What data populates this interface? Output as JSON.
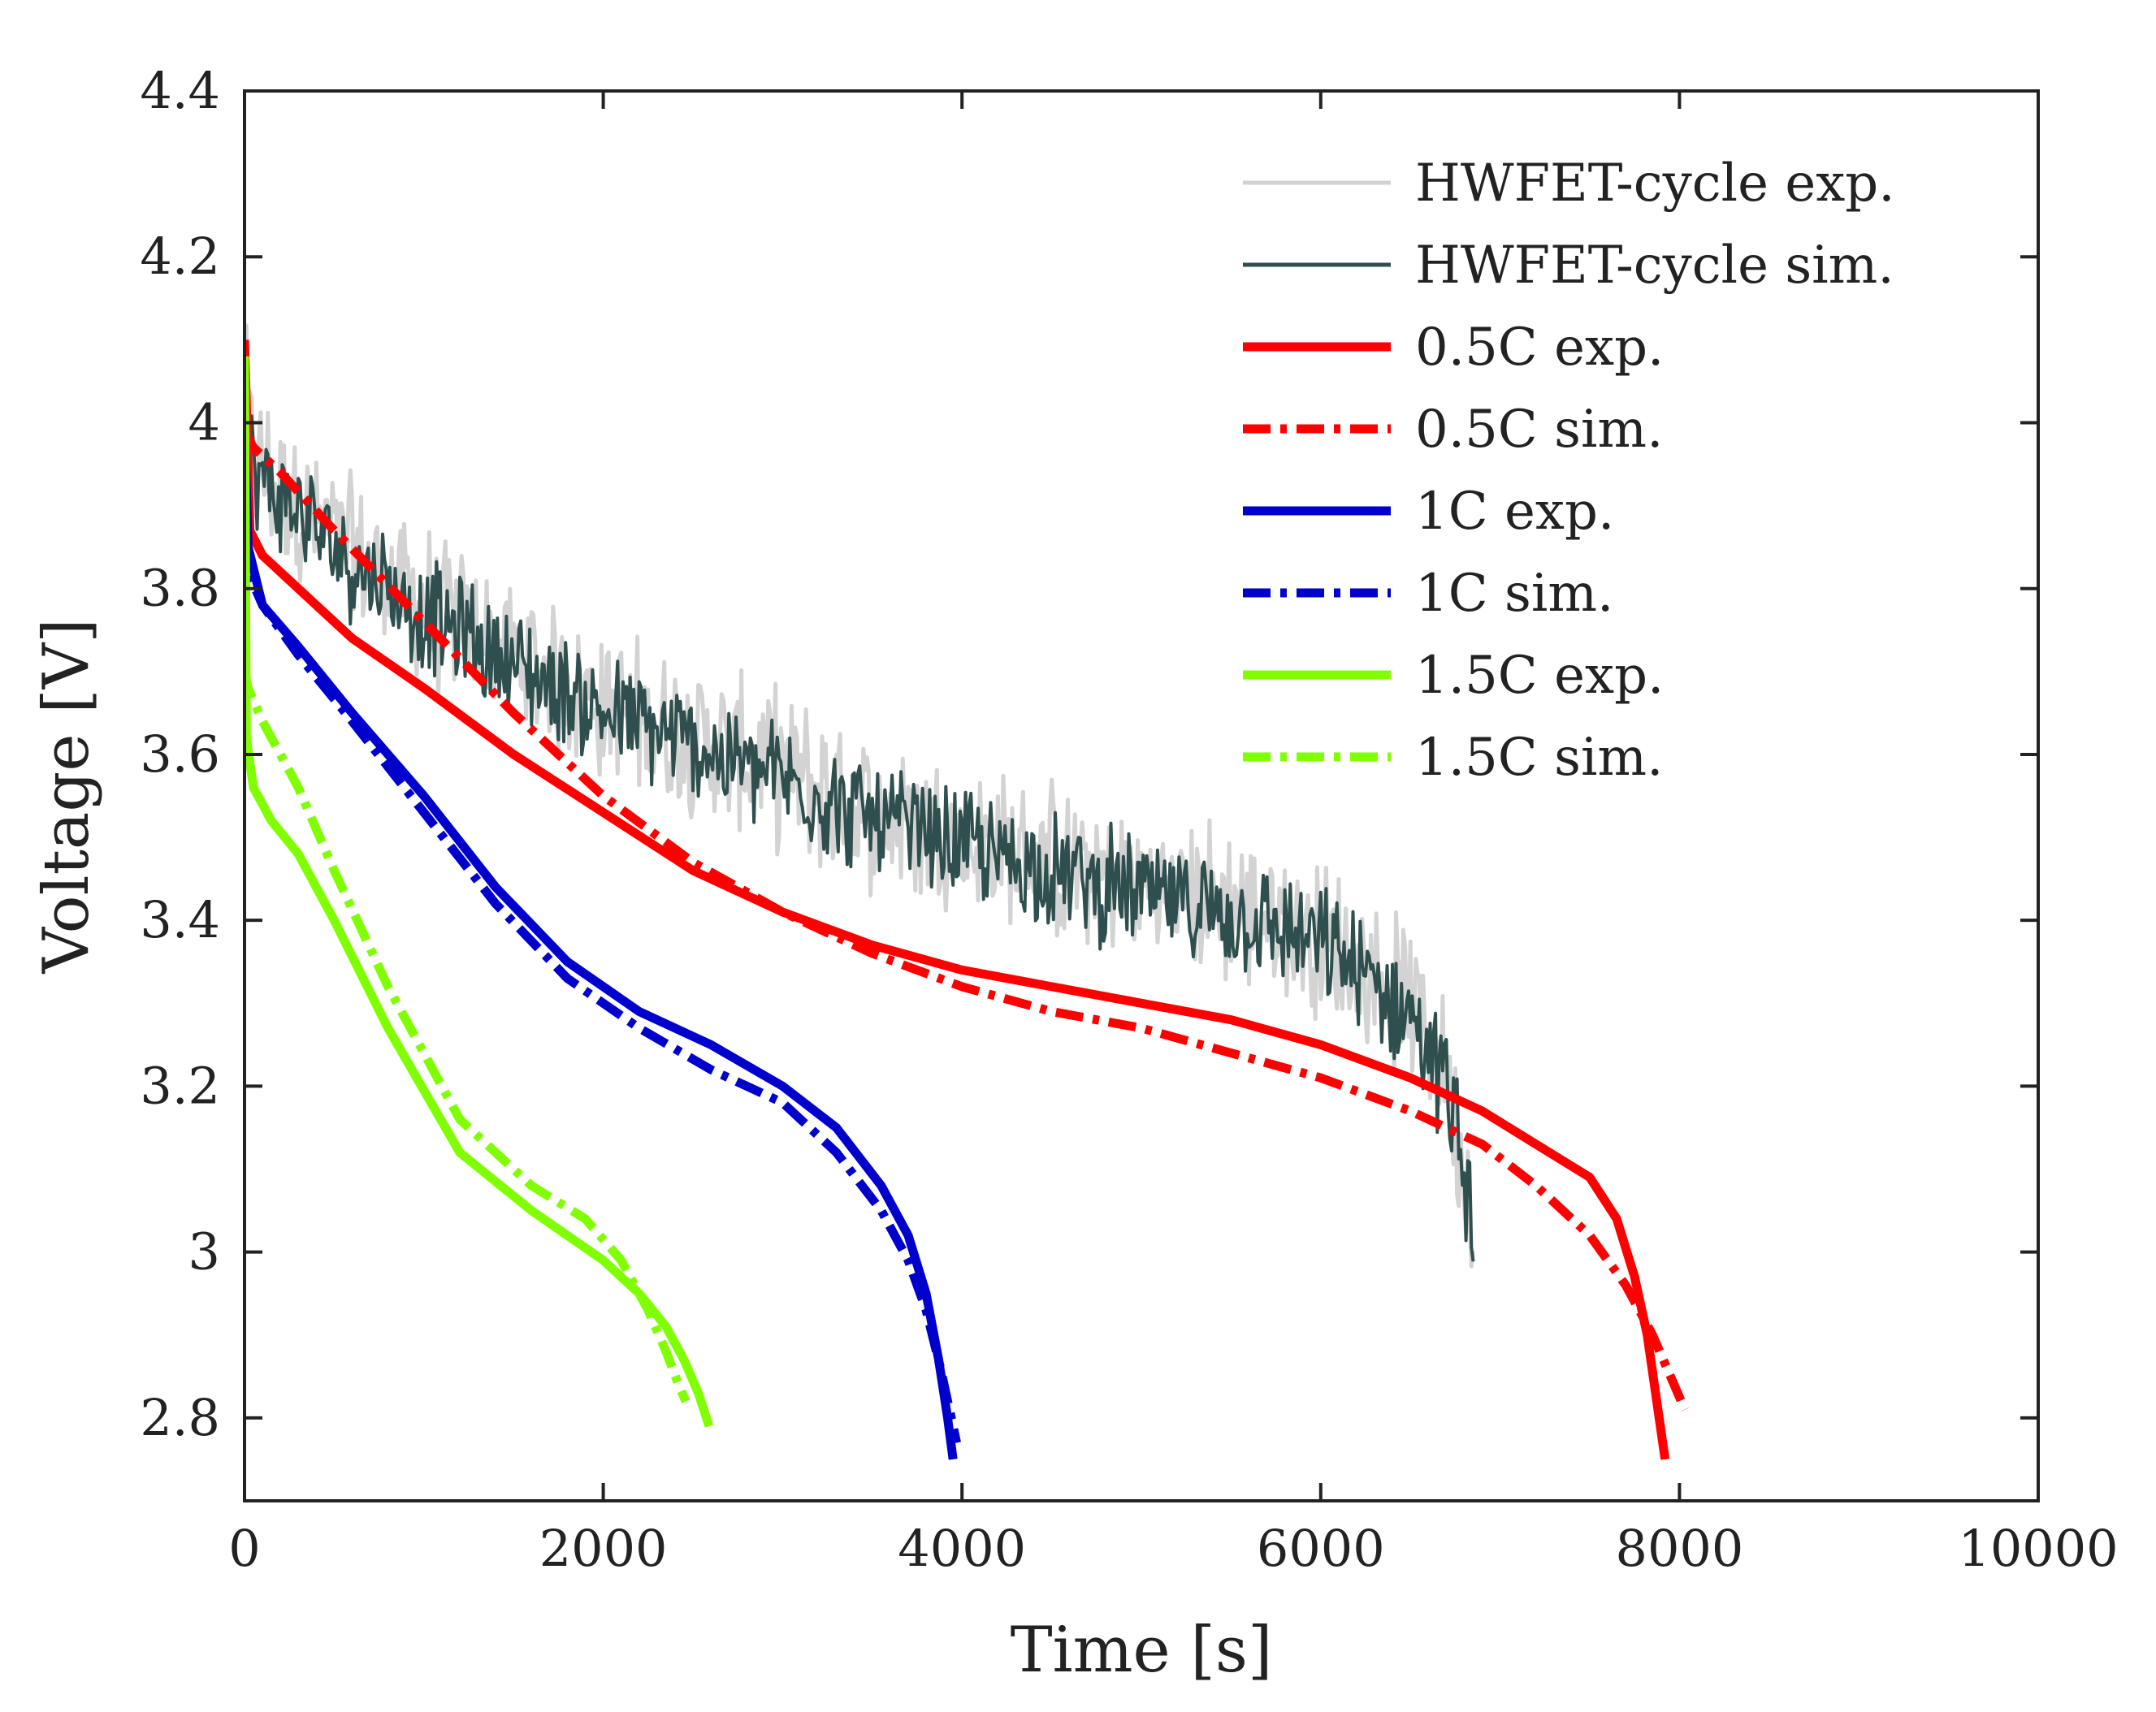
{
  "chart_data": {
    "type": "line",
    "title": "",
    "xlabel": "Time [s]",
    "ylabel": "Voltage [V]",
    "xlim": [
      0,
      10000
    ],
    "ylim": [
      2.7,
      4.4
    ],
    "xticks": [
      0,
      2000,
      4000,
      6000,
      8000,
      10000
    ],
    "yticks": [
      2.8,
      3.0,
      3.2,
      3.4,
      3.6,
      3.8,
      4.0,
      4.2,
      4.4
    ],
    "xtick_labels": [
      "0",
      "2000",
      "4000",
      "6000",
      "8000",
      "10000"
    ],
    "ytick_labels": [
      "2.8",
      "3",
      "3.2",
      "3.4",
      "3.6",
      "3.8",
      "4",
      "4.2",
      "4.4"
    ],
    "grid": false,
    "legend_position": "top-right",
    "series": [
      {
        "name": "HWFET-cycle exp.",
        "color": "#d3d3d3",
        "style": "solid",
        "noisy": true,
        "noise_amplitude": 0.11,
        "x": [
          0,
          50,
          200,
          500,
          1000,
          1500,
          2000,
          2500,
          3000,
          3500,
          4000,
          4500,
          5000,
          5500,
          6000,
          6500,
          6700,
          6850
        ],
        "y": [
          4.05,
          3.95,
          3.92,
          3.86,
          3.78,
          3.72,
          3.66,
          3.62,
          3.58,
          3.53,
          3.5,
          3.47,
          3.44,
          3.42,
          3.38,
          3.3,
          3.22,
          3.05
        ]
      },
      {
        "name": "HWFET-cycle sim.",
        "color": "#2f4f4f",
        "style": "solid",
        "noisy": true,
        "noise_amplitude": 0.08,
        "x": [
          0,
          50,
          200,
          500,
          1000,
          1500,
          2000,
          2500,
          3000,
          3500,
          4000,
          4500,
          5000,
          5500,
          6000,
          6500,
          6700,
          6850
        ],
        "y": [
          4.0,
          3.94,
          3.91,
          3.85,
          3.77,
          3.71,
          3.65,
          3.61,
          3.57,
          3.52,
          3.49,
          3.46,
          3.43,
          3.41,
          3.37,
          3.29,
          3.2,
          3.05
        ]
      },
      {
        "name": "0.5C exp.",
        "color": "#ff0000",
        "style": "solid",
        "x": [
          0,
          30,
          100,
          300,
          600,
          1000,
          1500,
          2000,
          2500,
          3000,
          3500,
          4000,
          4500,
          5000,
          5500,
          6000,
          6500,
          6900,
          7200,
          7500,
          7650,
          7750,
          7820,
          7880,
          7920
        ],
        "y": [
          4.1,
          3.87,
          3.84,
          3.8,
          3.74,
          3.68,
          3.6,
          3.53,
          3.46,
          3.41,
          3.37,
          3.34,
          3.32,
          3.3,
          3.28,
          3.25,
          3.21,
          3.17,
          3.13,
          3.09,
          3.04,
          2.97,
          2.9,
          2.81,
          2.75
        ]
      },
      {
        "name": "0.5C sim.",
        "color": "#ff0000",
        "style": "dashdot",
        "x": [
          0,
          50,
          200,
          500,
          1000,
          1500,
          2000,
          2500,
          3000,
          3500,
          4000,
          4500,
          5000,
          5500,
          6000,
          6500,
          6900,
          7200,
          7500,
          7700,
          7850,
          7950,
          8030
        ],
        "y": [
          3.99,
          3.97,
          3.94,
          3.87,
          3.76,
          3.65,
          3.55,
          3.47,
          3.41,
          3.36,
          3.32,
          3.29,
          3.27,
          3.24,
          3.21,
          3.17,
          3.13,
          3.08,
          3.02,
          2.96,
          2.9,
          2.85,
          2.81
        ]
      },
      {
        "name": "1C exp.",
        "color": "#0000cd",
        "style": "solid",
        "x": [
          0,
          20,
          100,
          300,
          600,
          1000,
          1400,
          1800,
          2200,
          2600,
          3000,
          3300,
          3550,
          3700,
          3800,
          3870,
          3920,
          3950
        ],
        "y": [
          4.0,
          3.85,
          3.78,
          3.73,
          3.65,
          3.55,
          3.44,
          3.35,
          3.29,
          3.25,
          3.2,
          3.15,
          3.08,
          3.02,
          2.95,
          2.87,
          2.8,
          2.75
        ]
      },
      {
        "name": "1C sim.",
        "color": "#0000cd",
        "style": "dashdot",
        "x": [
          0,
          20,
          100,
          300,
          600,
          1000,
          1400,
          1800,
          2200,
          2600,
          3000,
          3300,
          3550,
          3700,
          3800,
          3880,
          3940,
          3970
        ],
        "y": [
          3.86,
          3.82,
          3.78,
          3.72,
          3.64,
          3.53,
          3.42,
          3.33,
          3.27,
          3.22,
          3.18,
          3.12,
          3.05,
          2.99,
          2.93,
          2.86,
          2.8,
          2.77
        ]
      },
      {
        "name": "1.5C exp.",
        "color": "#7fff00",
        "style": "solid",
        "x": [
          0,
          10,
          50,
          150,
          300,
          500,
          800,
          1200,
          1600,
          2000,
          2200,
          2350,
          2450,
          2530,
          2590
        ],
        "y": [
          4.08,
          3.62,
          3.56,
          3.52,
          3.48,
          3.4,
          3.27,
          3.12,
          3.05,
          2.99,
          2.95,
          2.91,
          2.87,
          2.83,
          2.79
        ]
      },
      {
        "name": "1.5C sim.",
        "color": "#7fff00",
        "style": "dashdot",
        "x": [
          0,
          20,
          100,
          300,
          500,
          800,
          1200,
          1600,
          1900,
          2100,
          2250,
          2350,
          2420,
          2460
        ],
        "y": [
          3.7,
          3.68,
          3.64,
          3.56,
          3.46,
          3.32,
          3.16,
          3.08,
          3.04,
          2.99,
          2.93,
          2.88,
          2.84,
          2.82
        ]
      }
    ]
  }
}
